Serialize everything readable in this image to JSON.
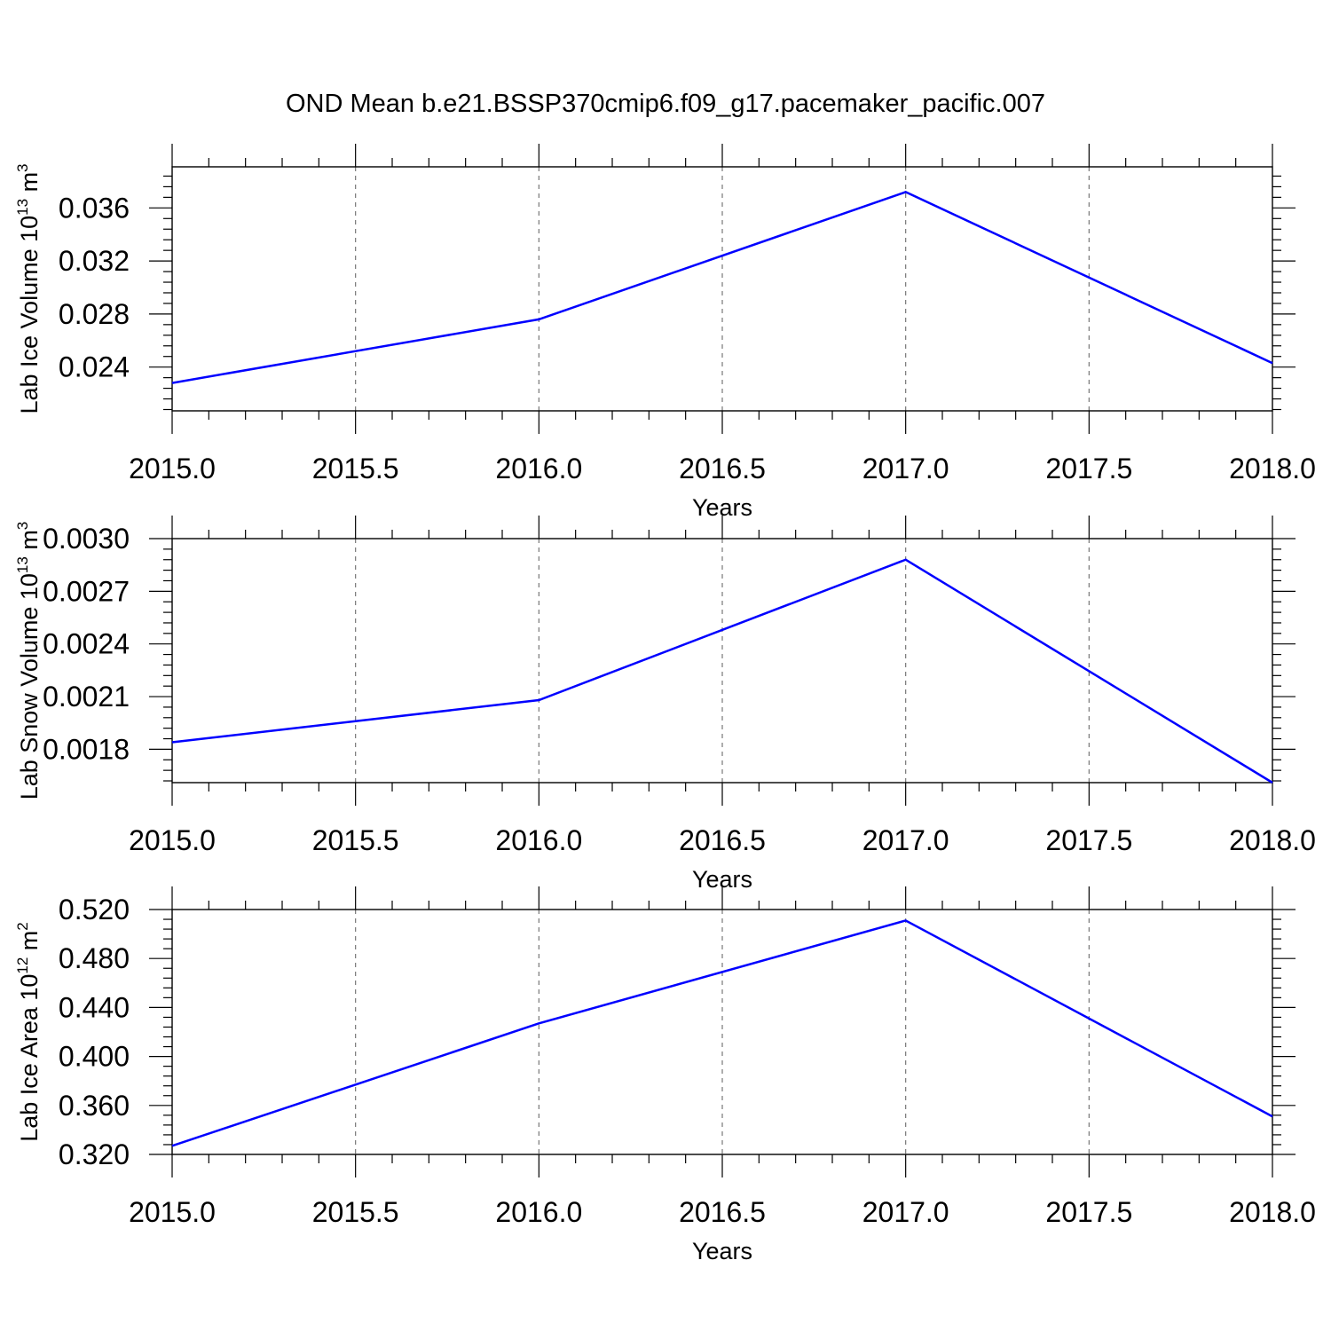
{
  "title": "OND Mean b.e21.BSSP370cmip6.f09_g17.pacemaker_pacific.007",
  "chart_data": [
    {
      "type": "line",
      "xlabel": "Years",
      "ylabel": "Lab Ice Volume 10",
      "ylabel_exp": "13",
      "ylabel_unit": " m",
      "ylabel_unit_exp": "3",
      "x": [
        2015,
        2016,
        2017,
        2018
      ],
      "xlim": [
        2015.0,
        2018.0
      ],
      "xticks": [
        "2015.0",
        "2015.5",
        "2016.0",
        "2016.5",
        "2017.0",
        "2017.5",
        "2018.0"
      ],
      "ylim": [
        0.0207,
        0.0391
      ],
      "yticks": [
        "0.024",
        "0.028",
        "0.032",
        "0.036"
      ],
      "grid": "vertical dashed",
      "series": [
        {
          "values": [
            0.0228,
            0.0276,
            0.0372,
            0.0243
          ],
          "color": "#0000ff"
        }
      ]
    },
    {
      "type": "line",
      "xlabel": "Years",
      "ylabel": "Lab Snow Volume 10",
      "ylabel_exp": "13",
      "ylabel_unit": " m",
      "ylabel_unit_exp": "3",
      "x": [
        2015,
        2016,
        2017,
        2018
      ],
      "xlim": [
        2015.0,
        2018.0
      ],
      "xticks": [
        "2015.0",
        "2015.5",
        "2016.0",
        "2016.5",
        "2017.0",
        "2017.5",
        "2018.0"
      ],
      "ylim": [
        0.00161,
        0.003
      ],
      "yticks": [
        "0.0018",
        "0.0021",
        "0.0024",
        "0.0027",
        "0.0030"
      ],
      "grid": "vertical dashed",
      "series": [
        {
          "values": [
            0.00184,
            0.00208,
            0.00288,
            0.00161
          ],
          "color": "#0000ff"
        }
      ]
    },
    {
      "type": "line",
      "xlabel": "Years",
      "ylabel": "Lab Ice Area 10",
      "ylabel_exp": "12",
      "ylabel_unit": " m",
      "ylabel_unit_exp": "2",
      "x": [
        2015,
        2016,
        2017,
        2018
      ],
      "xlim": [
        2015.0,
        2018.0
      ],
      "xticks": [
        "2015.0",
        "2015.5",
        "2016.0",
        "2016.5",
        "2017.0",
        "2017.5",
        "2018.0"
      ],
      "ylim": [
        0.32,
        0.52
      ],
      "yticks": [
        "0.320",
        "0.360",
        "0.400",
        "0.440",
        "0.480",
        "0.520"
      ],
      "grid": "vertical dashed",
      "series": [
        {
          "values": [
            0.327,
            0.427,
            0.511,
            0.351
          ],
          "color": "#0000ff"
        }
      ]
    }
  ]
}
